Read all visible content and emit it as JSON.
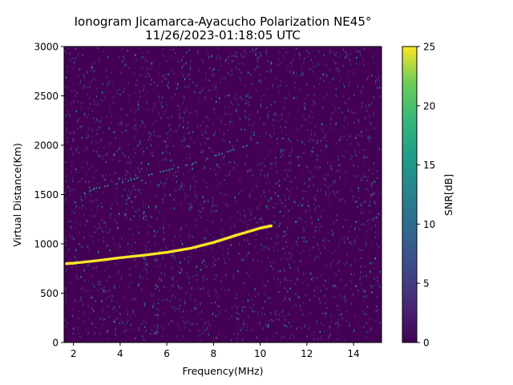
{
  "chart_data": {
    "type": "heatmap",
    "title_line1": "Ionogram Jicamarca-Ayacucho Polarization NE45°",
    "title_line2": "11/26/2023-01:18:05 UTC",
    "xlabel": "Frequency(MHz)",
    "ylabel": "Virtual Distance(Km)",
    "xlim": [
      1.6,
      15.2
    ],
    "ylim": [
      0,
      3000
    ],
    "xticks": [
      2,
      4,
      6,
      8,
      10,
      12,
      14
    ],
    "yticks": [
      0,
      500,
      1000,
      1500,
      2000,
      2500,
      3000
    ],
    "grid": false,
    "colorbar": {
      "label": "SNR[dB]",
      "range": [
        0,
        25
      ],
      "ticks": [
        0,
        5,
        10,
        15,
        20,
        25
      ],
      "colormap": "viridis"
    },
    "background_snr_db": 1,
    "traces": [
      {
        "description": "primary echo trace",
        "snr_db": 25,
        "x": [
          1.7,
          2,
          3,
          4,
          5,
          6,
          7,
          8,
          9,
          10,
          10.5
        ],
        "y": [
          800,
          805,
          830,
          860,
          885,
          915,
          955,
          1015,
          1090,
          1160,
          1185
        ]
      },
      {
        "description": "second-hop trace",
        "snr_db": 10,
        "x": [
          2,
          3,
          4,
          5,
          6,
          7,
          8,
          9,
          10.2
        ],
        "y": [
          1460,
          1560,
          1610,
          1680,
          1740,
          1800,
          1880,
          1960,
          2040
        ]
      }
    ],
    "colors": {
      "viridis_0": "#440154",
      "viridis_25": "#fde725"
    }
  }
}
